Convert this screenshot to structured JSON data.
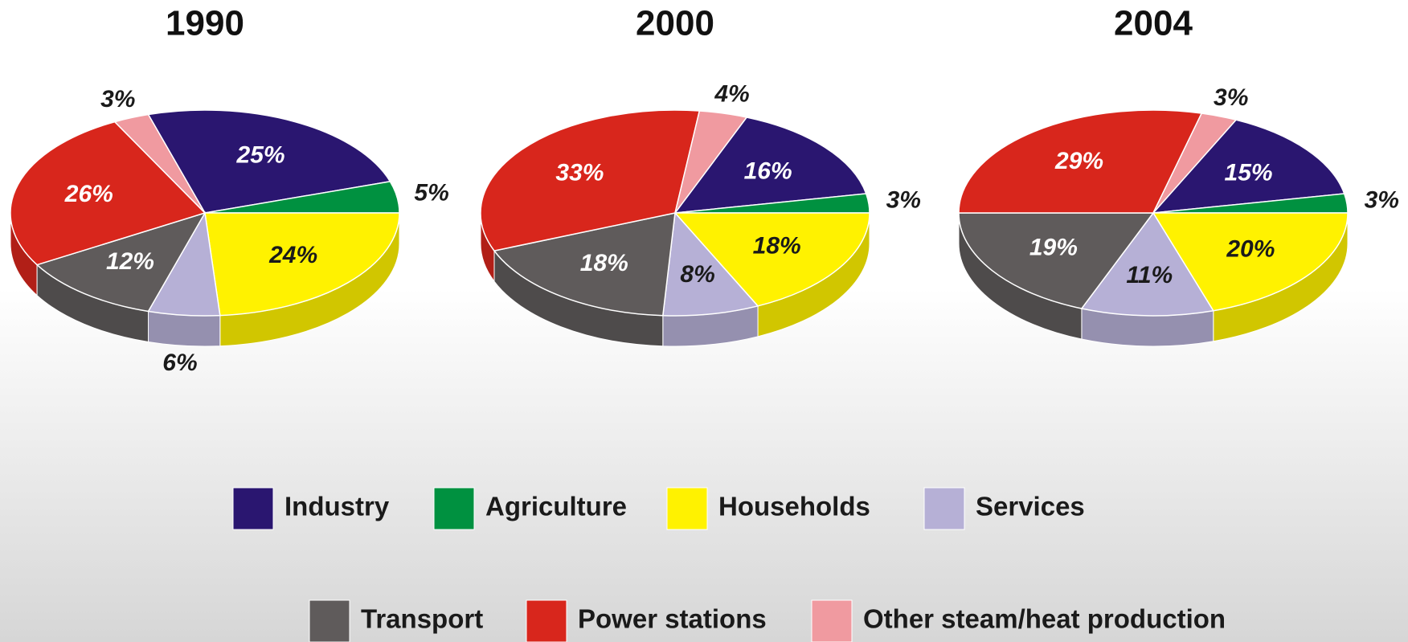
{
  "chart_data": [
    {
      "type": "pie",
      "title": "1990",
      "categories": [
        "Industry",
        "Agriculture",
        "Households",
        "Services",
        "Transport",
        "Power stations",
        "Other steam/heat production"
      ],
      "values": [
        25,
        5,
        24,
        6,
        12,
        26,
        3
      ],
      "value_labels": [
        "25%",
        "5%",
        "24%",
        "6%",
        "12%",
        "26%",
        "3%"
      ],
      "colors": [
        "#2a1670",
        "#009140",
        "#fff200",
        "#b6b0d6",
        "#5f5b5b",
        "#d8261c",
        "#f09aa0"
      ]
    },
    {
      "type": "pie",
      "title": "2000",
      "categories": [
        "Industry",
        "Agriculture",
        "Households",
        "Services",
        "Transport",
        "Power stations",
        "Other steam/heat production"
      ],
      "values": [
        16,
        3,
        18,
        8,
        18,
        33,
        4
      ],
      "value_labels": [
        "16%",
        "3%",
        "18%",
        "8%",
        "18%",
        "33%",
        "4%"
      ],
      "colors": [
        "#2a1670",
        "#009140",
        "#fff200",
        "#b6b0d6",
        "#5f5b5b",
        "#d8261c",
        "#f09aa0"
      ]
    },
    {
      "type": "pie",
      "title": "2004",
      "categories": [
        "Industry",
        "Agriculture",
        "Households",
        "Services",
        "Transport",
        "Power stations",
        "Other steam/heat production"
      ],
      "values": [
        15,
        3,
        20,
        11,
        19,
        29,
        3
      ],
      "value_labels": [
        "15%",
        "3%",
        "20%",
        "11%",
        "19%",
        "29%",
        "3%"
      ],
      "colors": [
        "#2a1670",
        "#009140",
        "#fff200",
        "#b6b0d6",
        "#5f5b5b",
        "#d8261c",
        "#f09aa0"
      ]
    }
  ]
}
